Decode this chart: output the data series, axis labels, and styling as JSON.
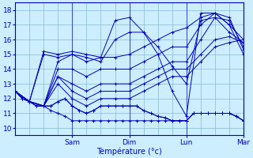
{
  "xlabel": "Température (°c)",
  "background_color": "#cceeff",
  "grid_color": "#88bbcc",
  "line_color": "#0000bb",
  "ylim": [
    9.5,
    18.5
  ],
  "yticks": [
    10,
    11,
    12,
    13,
    14,
    15,
    16,
    17,
    18
  ],
  "xlim": [
    0,
    96
  ],
  "xtick_positions": [
    24,
    48,
    72,
    96
  ],
  "xtick_labels": [
    "Sam",
    "Dim",
    "Lun",
    "Mar"
  ],
  "lines": [
    [
      0,
      12.5,
      3,
      12.0,
      6,
      11.8,
      9,
      11.5,
      12,
      11.5,
      15,
      11.5,
      18,
      11.8,
      21,
      12.0,
      24,
      11.5,
      27,
      11.2,
      30,
      11.0,
      33,
      11.2,
      36,
      11.5,
      39,
      11.5,
      42,
      11.5,
      45,
      11.5,
      48,
      11.5,
      51,
      11.5,
      54,
      11.2,
      57,
      11.0,
      60,
      10.8,
      63,
      10.7,
      66,
      10.5,
      69,
      10.5,
      72,
      10.5,
      75,
      11.0,
      78,
      11.0,
      81,
      11.0,
      84,
      11.0,
      87,
      11.0,
      90,
      11.0,
      93,
      10.8,
      96,
      10.5
    ],
    [
      0,
      12.5,
      3,
      12.0,
      6,
      11.8,
      9,
      11.5,
      12,
      11.5,
      15,
      11.5,
      18,
      11.8,
      21,
      12.0,
      24,
      11.5,
      27,
      11.2,
      30,
      11.0,
      33,
      11.2,
      36,
      11.5,
      39,
      11.5,
      42,
      11.5,
      45,
      11.5,
      48,
      11.5,
      51,
      11.5,
      54,
      11.2,
      57,
      11.0,
      60,
      10.8,
      63,
      10.7,
      66,
      10.5,
      69,
      10.5,
      72,
      10.5,
      75,
      11.0,
      78,
      11.0,
      81,
      11.0,
      84,
      11.0,
      87,
      11.0,
      90,
      11.0,
      93,
      10.8,
      96,
      10.5
    ],
    [
      0,
      12.5,
      3,
      12.0,
      6,
      11.8,
      9,
      11.5,
      12,
      11.5,
      15,
      11.2,
      18,
      11.0,
      21,
      10.8,
      24,
      10.5,
      27,
      10.5,
      30,
      10.5,
      33,
      10.5,
      36,
      10.5,
      39,
      10.5,
      42,
      10.5,
      45,
      10.5,
      48,
      10.5,
      51,
      10.5,
      54,
      10.5,
      57,
      10.5,
      60,
      10.5,
      63,
      10.5,
      66,
      10.5,
      69,
      10.5,
      72,
      10.5,
      75,
      11.0,
      78,
      11.0,
      81,
      11.0,
      84,
      11.0,
      87,
      11.0,
      90,
      11.0,
      93,
      10.8,
      96,
      10.5
    ],
    [
      0,
      12.5,
      6,
      11.8,
      12,
      11.5,
      18,
      13.0,
      24,
      12.0,
      30,
      11.5,
      36,
      12.0,
      42,
      12.0,
      48,
      12.0,
      54,
      12.5,
      60,
      13.0,
      66,
      13.5,
      72,
      13.5,
      78,
      14.5,
      84,
      15.5,
      90,
      15.8,
      96,
      16.0
    ],
    [
      0,
      12.5,
      6,
      11.8,
      12,
      11.5,
      18,
      13.5,
      24,
      12.5,
      30,
      12.0,
      36,
      12.5,
      42,
      12.5,
      48,
      12.5,
      54,
      13.0,
      60,
      13.5,
      66,
      14.0,
      72,
      14.0,
      78,
      15.0,
      84,
      16.0,
      90,
      16.2,
      96,
      15.8
    ],
    [
      0,
      12.5,
      6,
      11.8,
      12,
      11.5,
      18,
      13.5,
      24,
      13.0,
      30,
      12.5,
      36,
      13.0,
      42,
      13.0,
      48,
      13.0,
      54,
      13.5,
      60,
      14.0,
      66,
      14.5,
      72,
      14.5,
      78,
      16.0,
      84,
      17.5,
      90,
      17.3,
      96,
      15.5
    ],
    [
      0,
      12.5,
      6,
      11.8,
      12,
      11.5,
      18,
      14.0,
      24,
      14.0,
      30,
      13.5,
      36,
      14.0,
      42,
      14.0,
      48,
      14.0,
      54,
      14.5,
      60,
      15.0,
      66,
      15.5,
      72,
      15.5,
      78,
      17.0,
      84,
      17.8,
      90,
      17.5,
      96,
      15.3
    ],
    [
      0,
      12.5,
      6,
      11.8,
      12,
      11.5,
      18,
      14.5,
      24,
      15.0,
      30,
      14.5,
      36,
      14.8,
      42,
      14.8,
      48,
      15.0,
      54,
      15.5,
      60,
      16.0,
      66,
      16.5,
      72,
      16.8,
      78,
      17.5,
      84,
      17.8,
      90,
      17.0,
      96,
      15.0
    ],
    [
      0,
      12.5,
      6,
      11.8,
      12,
      15.0,
      18,
      14.8,
      24,
      15.0,
      30,
      14.8,
      36,
      14.5,
      42,
      16.0,
      48,
      16.5,
      54,
      16.5,
      60,
      15.5,
      66,
      14.2,
      72,
      13.0,
      78,
      17.3,
      84,
      17.5,
      90,
      16.5,
      96,
      15.8
    ],
    [
      0,
      12.5,
      6,
      11.8,
      12,
      15.2,
      18,
      15.0,
      24,
      15.2,
      30,
      15.0,
      36,
      14.8,
      42,
      17.3,
      48,
      17.5,
      54,
      16.5,
      60,
      15.0,
      66,
      12.5,
      72,
      10.8,
      78,
      17.8,
      84,
      17.8,
      90,
      17.0,
      96,
      16.0
    ]
  ]
}
